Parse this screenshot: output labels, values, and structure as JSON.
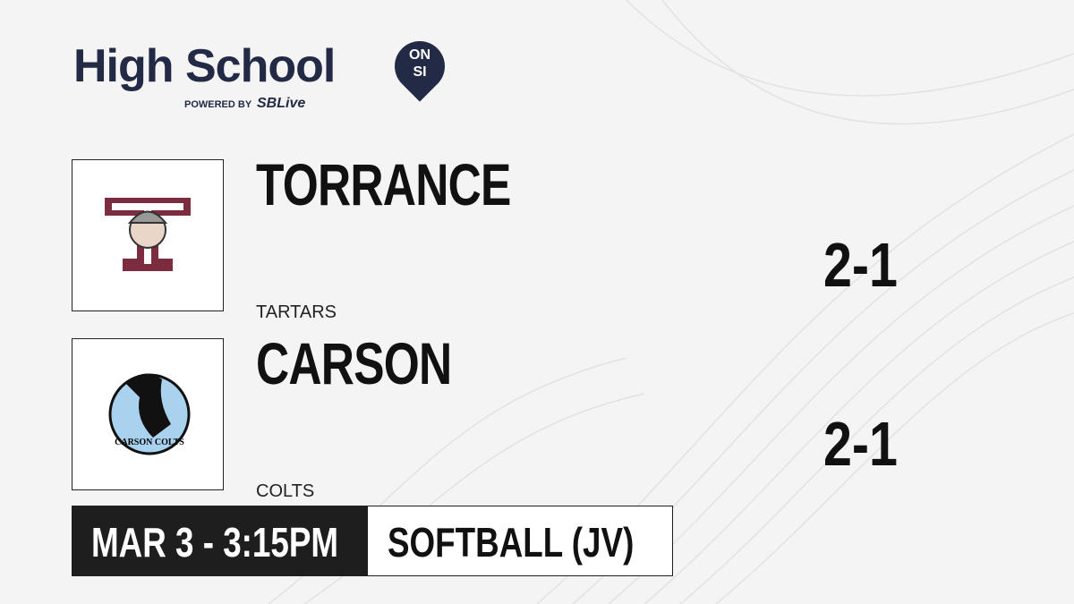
{
  "header": {
    "title": "High School",
    "badge": [
      "ON",
      "SI"
    ],
    "powered_by": "POWERED BY",
    "brand": "SBLive"
  },
  "teams": [
    {
      "name": "TORRANCE",
      "mascot": "TARTARS",
      "score": "2-1"
    },
    {
      "name": "CARSON",
      "mascot": "COLTS",
      "score": "2-1",
      "logo_text": "CARSON COLTS"
    }
  ],
  "footer": {
    "datetime": "MAR 3 - 3:15PM",
    "sport": "SOFTBALL (JV)"
  }
}
